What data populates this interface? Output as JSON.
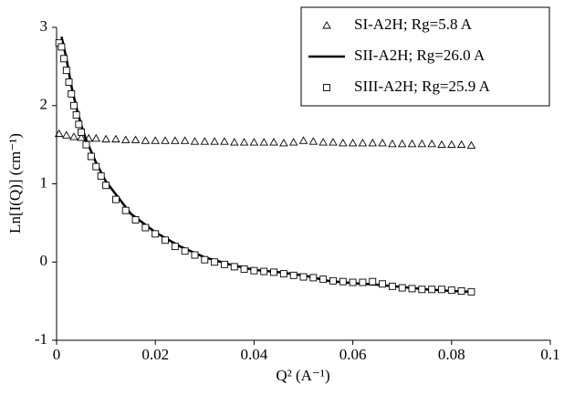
{
  "chart_data": {
    "type": "scatter",
    "xlabel": "Q² (A⁻¹)",
    "ylabel": "Ln[I(Q)] (cm⁻¹)",
    "xlim": [
      0,
      0.1
    ],
    "xticks": [
      0,
      0.02,
      0.04,
      0.06,
      0.08,
      0.1
    ],
    "ylim": [
      -1,
      3
    ],
    "yticks": [
      -1,
      0,
      1,
      2,
      3
    ],
    "grid": false,
    "legend": "upper right",
    "series": [
      {
        "name": "SI-A2H; Rg=5.8 A",
        "color": "#000000",
        "marker": "triangle",
        "x": [
          0.0005,
          0.002,
          0.0035,
          0.005,
          0.0065,
          0.008,
          0.01,
          0.012,
          0.014,
          0.016,
          0.018,
          0.02,
          0.022,
          0.024,
          0.026,
          0.028,
          0.03,
          0.032,
          0.034,
          0.036,
          0.038,
          0.04,
          0.042,
          0.044,
          0.046,
          0.048,
          0.05,
          0.052,
          0.054,
          0.056,
          0.058,
          0.06,
          0.062,
          0.064,
          0.066,
          0.068,
          0.07,
          0.072,
          0.074,
          0.076,
          0.078,
          0.08,
          0.082,
          0.084
        ],
        "values": [
          1.64,
          1.62,
          1.6,
          1.59,
          1.58,
          1.58,
          1.57,
          1.57,
          1.56,
          1.56,
          1.55,
          1.55,
          1.55,
          1.55,
          1.55,
          1.54,
          1.54,
          1.54,
          1.54,
          1.53,
          1.53,
          1.53,
          1.53,
          1.53,
          1.52,
          1.53,
          1.55,
          1.54,
          1.53,
          1.53,
          1.52,
          1.52,
          1.52,
          1.52,
          1.52,
          1.51,
          1.51,
          1.51,
          1.51,
          1.51,
          1.5,
          1.5,
          1.5,
          1.49
        ]
      },
      {
        "name": "SII-A2H; Rg=26.0 A",
        "color": "#000000",
        "marker": "line",
        "x": [
          0.001,
          0.002,
          0.003,
          0.004,
          0.005,
          0.006,
          0.008,
          0.01,
          0.015,
          0.02,
          0.025,
          0.03,
          0.035,
          0.04,
          0.045,
          0.05,
          0.055,
          0.06,
          0.065,
          0.07,
          0.075,
          0.08,
          0.084
        ],
        "values": [
          2.88,
          2.6,
          2.25,
          1.98,
          1.75,
          1.56,
          1.27,
          1.03,
          0.62,
          0.38,
          0.2,
          0.06,
          -0.03,
          -0.1,
          -0.13,
          -0.17,
          -0.24,
          -0.27,
          -0.29,
          -0.32,
          -0.35,
          -0.37,
          -0.38
        ]
      },
      {
        "name": "SIII-A2H; Rg=25.9 A",
        "color": "#000000",
        "marker": "square",
        "x": [
          0.0005,
          0.001,
          0.0015,
          0.002,
          0.0025,
          0.003,
          0.0035,
          0.004,
          0.0045,
          0.005,
          0.006,
          0.007,
          0.008,
          0.009,
          0.01,
          0.012,
          0.014,
          0.016,
          0.018,
          0.02,
          0.022,
          0.024,
          0.026,
          0.028,
          0.03,
          0.032,
          0.034,
          0.036,
          0.038,
          0.04,
          0.042,
          0.044,
          0.046,
          0.048,
          0.05,
          0.052,
          0.054,
          0.056,
          0.058,
          0.06,
          0.062,
          0.064,
          0.066,
          0.068,
          0.07,
          0.072,
          0.074,
          0.076,
          0.078,
          0.08,
          0.082,
          0.084
        ],
        "values": [
          2.8,
          2.75,
          2.6,
          2.45,
          2.3,
          2.15,
          2.0,
          1.88,
          1.76,
          1.66,
          1.5,
          1.35,
          1.22,
          1.1,
          0.98,
          0.8,
          0.66,
          0.54,
          0.44,
          0.36,
          0.28,
          0.2,
          0.14,
          0.09,
          0.03,
          0,
          -0.03,
          -0.06,
          -0.09,
          -0.11,
          -0.12,
          -0.13,
          -0.15,
          -0.17,
          -0.19,
          -0.2,
          -0.22,
          -0.24,
          -0.25,
          -0.26,
          -0.26,
          -0.25,
          -0.28,
          -0.31,
          -0.33,
          -0.34,
          -0.35,
          -0.35,
          -0.35,
          -0.36,
          -0.37,
          -0.38
        ]
      }
    ]
  }
}
